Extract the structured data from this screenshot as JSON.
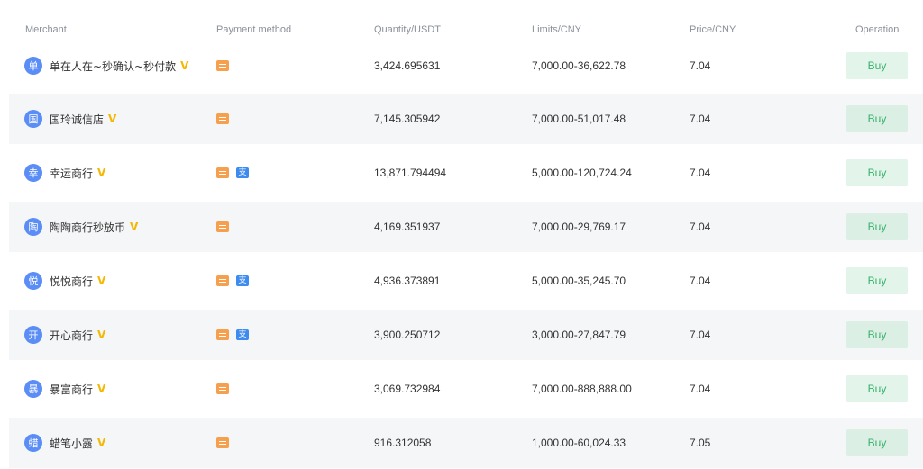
{
  "columns": {
    "merchant": "Merchant",
    "payment_method": "Payment method",
    "quantity": "Quantity/USDT",
    "limits": "Limits/CNY",
    "price": "Price/CNY",
    "operation": "Operation"
  },
  "colors": {
    "avatar": "#5a8df5",
    "verified_badge": "#f5b800",
    "bank_icon": "#f6a04d",
    "alipay_icon": "#3e8bf0",
    "buy_bg": "#e3f4ea",
    "buy_text": "#37b16b",
    "row_alt_bg": "#f5f6f8"
  },
  "rows": [
    {
      "avatar": "单",
      "name": "单在人在~秒确认~秒付款",
      "badge": "V",
      "methods": [
        "bank"
      ],
      "quantity": "3,424.695631",
      "limits": "7,000.00-36,622.78",
      "price": "7.04",
      "button": "Buy"
    },
    {
      "avatar": "国",
      "name": "国玲诚信店",
      "badge": "V",
      "methods": [
        "bank"
      ],
      "quantity": "7,145.305942",
      "limits": "7,000.00-51,017.48",
      "price": "7.04",
      "button": "Buy"
    },
    {
      "avatar": "幸",
      "name": "幸运商行",
      "badge": "V",
      "methods": [
        "bank",
        "alipay"
      ],
      "quantity": "13,871.794494",
      "limits": "5,000.00-120,724.24",
      "price": "7.04",
      "button": "Buy"
    },
    {
      "avatar": "陶",
      "name": "陶陶商行秒放币",
      "badge": "V",
      "methods": [
        "bank"
      ],
      "quantity": "4,169.351937",
      "limits": "7,000.00-29,769.17",
      "price": "7.04",
      "button": "Buy"
    },
    {
      "avatar": "悦",
      "name": "悦悦商行",
      "badge": "V",
      "methods": [
        "bank",
        "alipay"
      ],
      "quantity": "4,936.373891",
      "limits": "5,000.00-35,245.70",
      "price": "7.04",
      "button": "Buy"
    },
    {
      "avatar": "开",
      "name": "开心商行",
      "badge": "V",
      "methods": [
        "bank",
        "alipay"
      ],
      "quantity": "3,900.250712",
      "limits": "3,000.00-27,847.79",
      "price": "7.04",
      "button": "Buy"
    },
    {
      "avatar": "暴",
      "name": "暴富商行",
      "badge": "V",
      "methods": [
        "bank"
      ],
      "quantity": "3,069.732984",
      "limits": "7,000.00-888,888.00",
      "price": "7.04",
      "button": "Buy"
    },
    {
      "avatar": "蜡",
      "name": "蜡笔小露",
      "badge": "V",
      "methods": [
        "bank"
      ],
      "quantity": "916.312058",
      "limits": "1,000.00-60,024.33",
      "price": "7.05",
      "button": "Buy"
    }
  ],
  "alipay_glyph": "支"
}
